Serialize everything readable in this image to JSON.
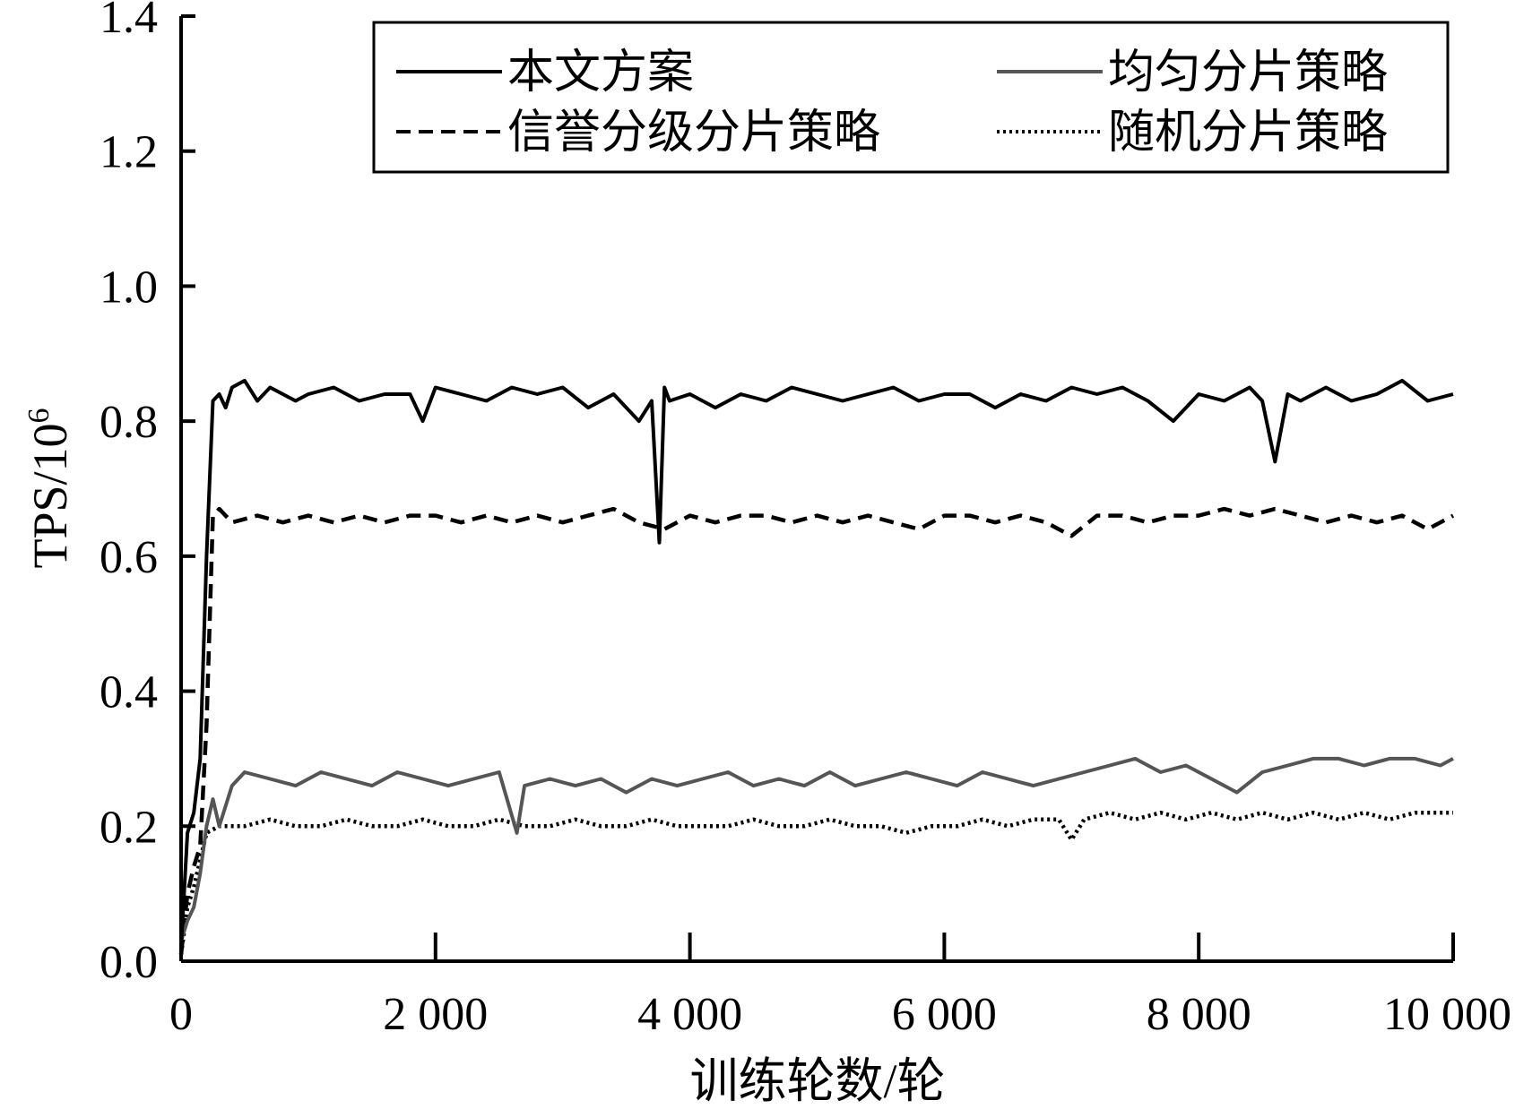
{
  "chart_data": {
    "type": "line",
    "title": "",
    "xlabel": "训练轮数/轮",
    "ylabel": "TPS/10",
    "ylabel_sup": "6",
    "xlim": [
      0,
      10000
    ],
    "ylim": [
      0,
      1.4
    ],
    "x_ticks": [
      0,
      2000,
      4000,
      6000,
      8000,
      10000
    ],
    "x_tick_labels": [
      "0",
      "2 000",
      "4 000",
      "6 000",
      "8 000",
      "10 000"
    ],
    "y_ticks": [
      0,
      0.2,
      0.4,
      0.6,
      0.8,
      1.0,
      1.2,
      1.4
    ],
    "y_tick_labels": [
      "0.0",
      "0.2",
      "0.4",
      "0.6",
      "0.8",
      "1.0",
      "1.2",
      "1.4"
    ],
    "grid": false,
    "legend_position": "top-right",
    "series": [
      {
        "name": "本文方案",
        "style": "solid",
        "color": "#000000",
        "x": [
          0,
          50,
          100,
          150,
          200,
          250,
          300,
          350,
          400,
          500,
          600,
          700,
          800,
          900,
          1000,
          1200,
          1400,
          1600,
          1800,
          1900,
          2000,
          2200,
          2400,
          2600,
          2800,
          3000,
          3200,
          3400,
          3600,
          3700,
          3760,
          3800,
          3840,
          4000,
          4200,
          4400,
          4600,
          4800,
          5000,
          5200,
          5400,
          5600,
          5800,
          6000,
          6200,
          6400,
          6600,
          6800,
          7000,
          7200,
          7400,
          7600,
          7800,
          8000,
          8200,
          8400,
          8500,
          8600,
          8700,
          8800,
          9000,
          9200,
          9400,
          9600,
          9800,
          10000
        ],
        "values": [
          0.02,
          0.19,
          0.22,
          0.3,
          0.6,
          0.83,
          0.84,
          0.82,
          0.85,
          0.86,
          0.83,
          0.85,
          0.84,
          0.83,
          0.84,
          0.85,
          0.83,
          0.84,
          0.84,
          0.8,
          0.85,
          0.84,
          0.83,
          0.85,
          0.84,
          0.85,
          0.82,
          0.84,
          0.8,
          0.83,
          0.62,
          0.85,
          0.83,
          0.84,
          0.82,
          0.84,
          0.83,
          0.85,
          0.84,
          0.83,
          0.84,
          0.85,
          0.83,
          0.84,
          0.84,
          0.82,
          0.84,
          0.83,
          0.85,
          0.84,
          0.85,
          0.83,
          0.8,
          0.84,
          0.83,
          0.85,
          0.83,
          0.74,
          0.84,
          0.83,
          0.85,
          0.83,
          0.84,
          0.86,
          0.83,
          0.84
        ]
      },
      {
        "name": "均匀分片策略",
        "style": "solid",
        "color": "#555555",
        "x": [
          0,
          50,
          100,
          150,
          200,
          250,
          300,
          400,
          500,
          700,
          900,
          1100,
          1300,
          1500,
          1700,
          1900,
          2100,
          2300,
          2500,
          2640,
          2700,
          2900,
          3100,
          3300,
          3500,
          3700,
          3900,
          4100,
          4300,
          4500,
          4700,
          4900,
          5100,
          5300,
          5500,
          5700,
          5900,
          6100,
          6300,
          6500,
          6700,
          6900,
          7100,
          7300,
          7500,
          7700,
          7900,
          8100,
          8300,
          8500,
          8700,
          8900,
          9100,
          9300,
          9500,
          9700,
          9900,
          10000
        ],
        "values": [
          0.03,
          0.06,
          0.08,
          0.13,
          0.2,
          0.24,
          0.2,
          0.26,
          0.28,
          0.27,
          0.26,
          0.28,
          0.27,
          0.26,
          0.28,
          0.27,
          0.26,
          0.27,
          0.28,
          0.19,
          0.26,
          0.27,
          0.26,
          0.27,
          0.25,
          0.27,
          0.26,
          0.27,
          0.28,
          0.26,
          0.27,
          0.26,
          0.28,
          0.26,
          0.27,
          0.28,
          0.27,
          0.26,
          0.28,
          0.27,
          0.26,
          0.27,
          0.28,
          0.29,
          0.3,
          0.28,
          0.29,
          0.27,
          0.25,
          0.28,
          0.29,
          0.3,
          0.3,
          0.29,
          0.3,
          0.3,
          0.29,
          0.3
        ]
      },
      {
        "name": "信誉分级分片策略",
        "style": "dashed",
        "color": "#000000",
        "x": [
          0,
          50,
          100,
          150,
          200,
          250,
          300,
          400,
          600,
          800,
          1000,
          1200,
          1400,
          1600,
          1800,
          2000,
          2200,
          2400,
          2600,
          2800,
          3000,
          3200,
          3400,
          3600,
          3800,
          4000,
          4200,
          4400,
          4600,
          4800,
          5000,
          5200,
          5400,
          5600,
          5800,
          6000,
          6200,
          6400,
          6600,
          6800,
          7000,
          7200,
          7400,
          7600,
          7800,
          8000,
          8200,
          8400,
          8600,
          8800,
          9000,
          9200,
          9400,
          9600,
          9800,
          10000
        ],
        "values": [
          0.01,
          0.1,
          0.14,
          0.17,
          0.35,
          0.66,
          0.67,
          0.65,
          0.66,
          0.65,
          0.66,
          0.65,
          0.66,
          0.65,
          0.66,
          0.66,
          0.65,
          0.66,
          0.65,
          0.66,
          0.65,
          0.66,
          0.67,
          0.65,
          0.64,
          0.66,
          0.65,
          0.66,
          0.66,
          0.65,
          0.66,
          0.65,
          0.66,
          0.65,
          0.64,
          0.66,
          0.66,
          0.65,
          0.66,
          0.65,
          0.63,
          0.66,
          0.66,
          0.65,
          0.66,
          0.66,
          0.67,
          0.66,
          0.67,
          0.66,
          0.65,
          0.66,
          0.65,
          0.66,
          0.64,
          0.66
        ]
      },
      {
        "name": "随机分片策略",
        "style": "dotted",
        "color": "#000000",
        "x": [
          0,
          50,
          100,
          150,
          200,
          300,
          500,
          700,
          900,
          1100,
          1300,
          1500,
          1700,
          1900,
          2100,
          2300,
          2500,
          2700,
          2900,
          3100,
          3300,
          3500,
          3700,
          3900,
          4100,
          4300,
          4500,
          4700,
          4900,
          5100,
          5300,
          5500,
          5700,
          5900,
          6100,
          6300,
          6500,
          6700,
          6900,
          7000,
          7100,
          7300,
          7500,
          7700,
          7900,
          8100,
          8300,
          8500,
          8700,
          8900,
          9100,
          9300,
          9500,
          9700,
          9900,
          10000
        ],
        "values": [
          0.01,
          0.08,
          0.11,
          0.15,
          0.19,
          0.2,
          0.2,
          0.21,
          0.2,
          0.2,
          0.21,
          0.2,
          0.2,
          0.21,
          0.2,
          0.2,
          0.21,
          0.2,
          0.2,
          0.21,
          0.2,
          0.2,
          0.21,
          0.2,
          0.2,
          0.2,
          0.21,
          0.2,
          0.2,
          0.21,
          0.2,
          0.2,
          0.19,
          0.2,
          0.2,
          0.21,
          0.2,
          0.21,
          0.21,
          0.18,
          0.21,
          0.22,
          0.21,
          0.22,
          0.21,
          0.22,
          0.21,
          0.22,
          0.21,
          0.22,
          0.21,
          0.22,
          0.21,
          0.22,
          0.22,
          0.22
        ]
      }
    ]
  }
}
